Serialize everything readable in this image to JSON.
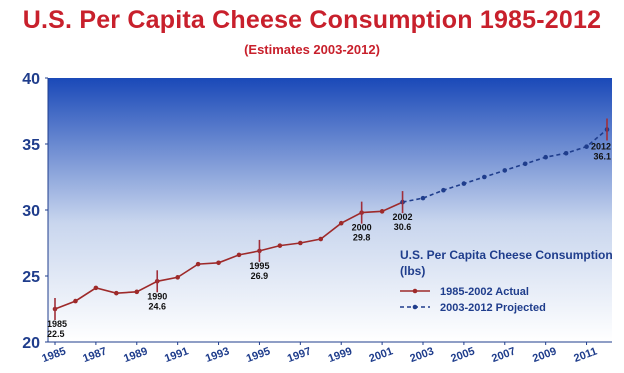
{
  "chart_data": {
    "type": "line",
    "title": "U.S. Per Capita Cheese Consumption 1985-2012",
    "subtitle": "(Estimates 2003-2012)",
    "xlabel": "",
    "ylabel": "",
    "ylim": [
      20,
      40
    ],
    "yticks": [
      20,
      25,
      30,
      35,
      40
    ],
    "xticks": [
      "1985",
      "1987",
      "1989",
      "1991",
      "1993",
      "1995",
      "1997",
      "1999",
      "2001",
      "2003",
      "2005",
      "2007",
      "2009",
      "2011"
    ],
    "grid": false,
    "legend_position": "right",
    "legend_title": "U.S. Per Capita Cheese Consumption (lbs)",
    "series": [
      {
        "name": "1985-2002 Actual",
        "style": "solid",
        "color": "#9e2a2a",
        "x": [
          1985,
          1986,
          1987,
          1988,
          1989,
          1990,
          1991,
          1992,
          1993,
          1994,
          1995,
          1996,
          1997,
          1998,
          1999,
          2000,
          2001,
          2002
        ],
        "y": [
          22.5,
          23.1,
          24.1,
          23.7,
          23.8,
          24.6,
          24.9,
          25.9,
          26.0,
          26.6,
          26.9,
          27.3,
          27.5,
          27.8,
          29.0,
          29.8,
          29.9,
          30.6
        ]
      },
      {
        "name": "2003-2012 Projected",
        "style": "dashed",
        "color": "#1f3d8c",
        "x": [
          2002,
          2003,
          2004,
          2005,
          2006,
          2007,
          2008,
          2009,
          2010,
          2011,
          2012
        ],
        "y": [
          30.6,
          30.9,
          31.5,
          32.0,
          32.5,
          33.0,
          33.5,
          34.0,
          34.3,
          34.8,
          36.1
        ]
      }
    ],
    "annotations": [
      {
        "year": "1985",
        "value": "22.5",
        "x": 1985,
        "y": 22.5
      },
      {
        "year": "1990",
        "value": "24.6",
        "x": 1990,
        "y": 24.6
      },
      {
        "year": "1995",
        "value": "26.9",
        "x": 1995,
        "y": 26.9
      },
      {
        "year": "2000",
        "value": "29.8",
        "x": 2000,
        "y": 29.8
      },
      {
        "year": "2002",
        "value": "30.6",
        "x": 2002,
        "y": 30.6
      },
      {
        "year": "2012",
        "value": "36.1",
        "x": 2012,
        "y": 36.1
      }
    ],
    "colors": {
      "title": "#c8202c",
      "axis_text": "#1f3d8c",
      "actual": "#9e2a2a",
      "projected": "#1f3d8c",
      "grad_top": "#1a49b8",
      "grad_bottom": "#ffffff"
    }
  }
}
